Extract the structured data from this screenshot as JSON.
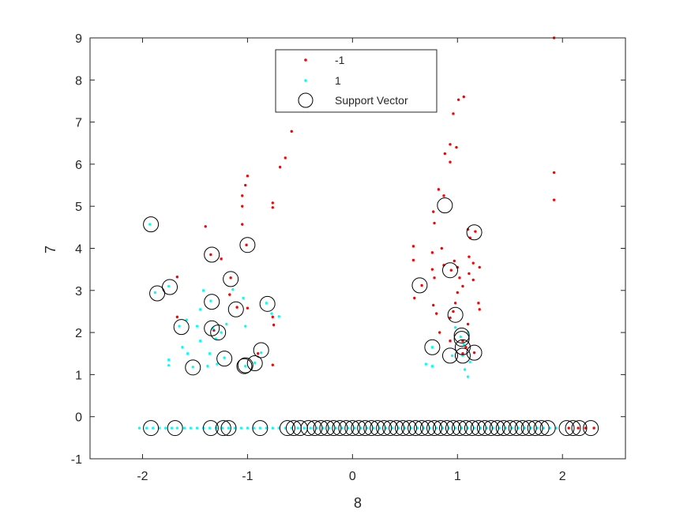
{
  "chart_data": {
    "type": "scatter",
    "title": "",
    "xlabel": "8",
    "ylabel": "7",
    "xlim": [
      -2.5,
      2.6
    ],
    "ylim": [
      -1,
      9
    ],
    "xticks": [
      -2,
      -1,
      0,
      1,
      2
    ],
    "xtick_labels": [
      "-2",
      "-1",
      "0",
      "1",
      "2"
    ],
    "yticks": [
      -1,
      0,
      1,
      2,
      3,
      4,
      5,
      6,
      7,
      8,
      9
    ],
    "ytick_labels": [
      "-1",
      "0",
      "1",
      "2",
      "3",
      "4",
      "5",
      "6",
      "7",
      "8",
      "9"
    ],
    "grid": false,
    "legend": {
      "placement": "top-center",
      "entries": [
        "-1",
        "1",
        "Support Vector"
      ]
    },
    "colors": {
      "neg": "#ff0000",
      "pos": "#00ffff",
      "sv": "#000000",
      "axis": "#262626"
    },
    "series": [
      {
        "name": "-1",
        "marker": "dot",
        "points": [
          [
            1.92,
            9.0
          ],
          [
            1.92,
            5.8
          ],
          [
            1.92,
            5.15
          ],
          [
            -0.58,
            6.78
          ],
          [
            -0.64,
            6.15
          ],
          [
            -0.69,
            5.93
          ],
          [
            -1.0,
            5.72
          ],
          [
            -1.02,
            5.5
          ],
          [
            -1.05,
            5.25
          ],
          [
            -1.05,
            5.0
          ],
          [
            -1.05,
            4.57
          ],
          [
            -1.01,
            4.08
          ],
          [
            -0.76,
            5.08
          ],
          [
            -0.76,
            4.97
          ],
          [
            -1.4,
            4.52
          ],
          [
            -1.35,
            3.85
          ],
          [
            -1.25,
            3.75
          ],
          [
            -1.67,
            3.32
          ],
          [
            -1.16,
            3.3
          ],
          [
            -1.17,
            2.9
          ],
          [
            -1.1,
            2.6
          ],
          [
            -1.0,
            2.58
          ],
          [
            -0.9,
            1.5
          ],
          [
            -0.76,
            2.37
          ],
          [
            -0.75,
            2.18
          ],
          [
            -0.76,
            1.23
          ],
          [
            -1.67,
            2.37
          ],
          [
            -1.32,
            2.05
          ],
          [
            1.06,
            7.6
          ],
          [
            1.01,
            7.53
          ],
          [
            0.96,
            7.2
          ],
          [
            0.93,
            6.47
          ],
          [
            0.99,
            6.4
          ],
          [
            0.88,
            6.25
          ],
          [
            0.93,
            6.05
          ],
          [
            0.82,
            5.4
          ],
          [
            0.87,
            5.25
          ],
          [
            0.77,
            4.87
          ],
          [
            0.78,
            4.6
          ],
          [
            0.58,
            4.05
          ],
          [
            0.58,
            3.72
          ],
          [
            0.76,
            3.9
          ],
          [
            0.76,
            3.5
          ],
          [
            0.78,
            3.3
          ],
          [
            0.66,
            3.12
          ],
          [
            0.59,
            2.82
          ],
          [
            0.77,
            2.65
          ],
          [
            0.8,
            2.45
          ],
          [
            0.83,
            2.0
          ],
          [
            0.85,
            4.0
          ],
          [
            0.87,
            3.6
          ],
          [
            0.94,
            3.48
          ],
          [
            0.97,
            3.7
          ],
          [
            1.0,
            3.55
          ],
          [
            1.02,
            3.3
          ],
          [
            1.05,
            3.1
          ],
          [
            1.0,
            2.95
          ],
          [
            0.98,
            2.7
          ],
          [
            0.96,
            2.5
          ],
          [
            0.93,
            2.35
          ],
          [
            1.1,
            4.45
          ],
          [
            1.12,
            4.25
          ],
          [
            1.17,
            4.4
          ],
          [
            1.11,
            3.8
          ],
          [
            1.15,
            3.65
          ],
          [
            1.21,
            3.55
          ],
          [
            1.11,
            3.4
          ],
          [
            1.15,
            3.25
          ],
          [
            1.2,
            2.7
          ],
          [
            1.21,
            2.55
          ],
          [
            1.1,
            2.2
          ],
          [
            1.16,
            1.52
          ],
          [
            1.05,
            1.8
          ],
          [
            1.08,
            1.65
          ],
          [
            1.05,
            1.5
          ],
          [
            0.93,
            1.8
          ],
          [
            2.06,
            -0.27
          ],
          [
            2.15,
            -0.27
          ],
          [
            2.22,
            -0.27
          ],
          [
            2.3,
            -0.27
          ]
        ]
      },
      {
        "name": "1",
        "marker": "dot",
        "points": [
          [
            -1.93,
            4.57
          ],
          [
            -1.88,
            2.95
          ],
          [
            -1.75,
            3.1
          ],
          [
            -1.65,
            2.15
          ],
          [
            -1.62,
            1.65
          ],
          [
            -1.58,
            2.3
          ],
          [
            -1.57,
            1.5
          ],
          [
            -1.75,
            1.35
          ],
          [
            -1.75,
            1.22
          ],
          [
            -1.52,
            1.18
          ],
          [
            -1.45,
            1.8
          ],
          [
            -1.45,
            2.55
          ],
          [
            -1.42,
            3.0
          ],
          [
            -1.35,
            2.75
          ],
          [
            -1.33,
            2.1
          ],
          [
            -1.3,
            1.85
          ],
          [
            -1.36,
            1.5
          ],
          [
            -1.38,
            1.2
          ],
          [
            -1.29,
            1.25
          ],
          [
            -1.22,
            1.4
          ],
          [
            -1.2,
            2.2
          ],
          [
            -1.14,
            3.02
          ],
          [
            -1.04,
            2.82
          ],
          [
            -1.02,
            2.15
          ],
          [
            -1.02,
            1.2
          ],
          [
            -0.93,
            1.28
          ],
          [
            -0.87,
            1.52
          ],
          [
            -0.82,
            2.7
          ],
          [
            -0.77,
            2.45
          ],
          [
            -0.7,
            2.38
          ],
          [
            -1.48,
            2.15
          ],
          [
            -1.25,
            2.0
          ],
          [
            0.7,
            1.25
          ],
          [
            0.76,
            1.2
          ],
          [
            0.76,
            1.65
          ],
          [
            0.95,
            1.45
          ],
          [
            0.98,
            2.12
          ],
          [
            1.03,
            1.9
          ],
          [
            1.06,
            1.72
          ],
          [
            1.1,
            2.0
          ],
          [
            1.12,
            1.3
          ],
          [
            1.1,
            0.95
          ],
          [
            1.05,
            1.45
          ],
          [
            1.07,
            1.12
          ],
          [
            -2.03,
            -0.27
          ],
          [
            -1.96,
            -0.27
          ],
          [
            -1.9,
            -0.27
          ],
          [
            -1.84,
            -0.27
          ],
          [
            -1.78,
            -0.27
          ],
          [
            -1.72,
            -0.27
          ],
          [
            -1.67,
            -0.27
          ],
          [
            -1.6,
            -0.27
          ],
          [
            -1.54,
            -0.27
          ],
          [
            -1.48,
            -0.27
          ],
          [
            -1.42,
            -0.27
          ],
          [
            -1.36,
            -0.27
          ],
          [
            -1.3,
            -0.27
          ],
          [
            -1.24,
            -0.27
          ],
          [
            -1.18,
            -0.27
          ],
          [
            -1.12,
            -0.27
          ],
          [
            -1.06,
            -0.27
          ],
          [
            -1.0,
            -0.27
          ],
          [
            -0.94,
            -0.27
          ],
          [
            -0.88,
            -0.27
          ],
          [
            -0.82,
            -0.27
          ],
          [
            -0.76,
            -0.27
          ],
          [
            -0.7,
            -0.27
          ],
          [
            -0.64,
            -0.27
          ],
          [
            -0.58,
            -0.27
          ],
          [
            -0.52,
            -0.27
          ],
          [
            -0.46,
            -0.27
          ],
          [
            -0.4,
            -0.27
          ],
          [
            -0.34,
            -0.27
          ],
          [
            -0.28,
            -0.27
          ],
          [
            -0.22,
            -0.27
          ],
          [
            -0.16,
            -0.27
          ],
          [
            -0.1,
            -0.27
          ],
          [
            -0.04,
            -0.27
          ],
          [
            0.02,
            -0.27
          ],
          [
            0.08,
            -0.27
          ],
          [
            0.14,
            -0.27
          ],
          [
            0.2,
            -0.27
          ],
          [
            0.26,
            -0.27
          ],
          [
            0.32,
            -0.27
          ],
          [
            0.38,
            -0.27
          ],
          [
            0.44,
            -0.27
          ],
          [
            0.5,
            -0.27
          ],
          [
            0.56,
            -0.27
          ],
          [
            0.62,
            -0.27
          ],
          [
            0.68,
            -0.27
          ],
          [
            0.74,
            -0.27
          ],
          [
            0.8,
            -0.27
          ],
          [
            0.86,
            -0.27
          ],
          [
            0.92,
            -0.27
          ],
          [
            0.98,
            -0.27
          ],
          [
            1.04,
            -0.27
          ],
          [
            1.1,
            -0.27
          ],
          [
            1.16,
            -0.27
          ],
          [
            1.22,
            -0.27
          ],
          [
            1.28,
            -0.27
          ],
          [
            1.34,
            -0.27
          ],
          [
            1.4,
            -0.27
          ],
          [
            1.46,
            -0.27
          ],
          [
            1.52,
            -0.27
          ],
          [
            1.58,
            -0.27
          ],
          [
            1.64,
            -0.27
          ],
          [
            1.7,
            -0.27
          ],
          [
            1.76,
            -0.27
          ],
          [
            1.82,
            -0.27
          ],
          [
            1.88,
            -0.27
          ],
          [
            1.94,
            -0.27
          ]
        ]
      },
      {
        "name": "Support Vector",
        "marker": "circle",
        "points": [
          [
            -1.92,
            4.57
          ],
          [
            -1.86,
            2.93
          ],
          [
            -1.74,
            3.08
          ],
          [
            -1.63,
            2.13
          ],
          [
            -1.52,
            1.17
          ],
          [
            -1.34,
            3.85
          ],
          [
            -1.34,
            2.73
          ],
          [
            -1.34,
            2.1
          ],
          [
            -1.28,
            2.0
          ],
          [
            -1.22,
            1.38
          ],
          [
            -1.16,
            3.27
          ],
          [
            -1.11,
            2.55
          ],
          [
            -1.03,
            1.2
          ],
          [
            -1.02,
            1.22
          ],
          [
            -1.0,
            4.08
          ],
          [
            -0.93,
            1.27
          ],
          [
            -0.87,
            1.58
          ],
          [
            -0.81,
            2.68
          ],
          [
            0.64,
            3.12
          ],
          [
            0.76,
            1.65
          ],
          [
            0.88,
            5.02
          ],
          [
            0.93,
            3.48
          ],
          [
            0.93,
            1.45
          ],
          [
            0.98,
            2.42
          ],
          [
            1.04,
            1.93
          ],
          [
            1.04,
            1.85
          ],
          [
            1.05,
            1.65
          ],
          [
            1.05,
            1.45
          ],
          [
            1.16,
            4.38
          ],
          [
            1.16,
            1.52
          ],
          [
            -1.92,
            -0.27
          ],
          [
            -1.69,
            -0.27
          ],
          [
            -1.35,
            -0.27
          ],
          [
            -1.23,
            -0.27
          ],
          [
            -1.18,
            -0.27
          ],
          [
            -0.88,
            -0.27
          ],
          [
            -0.62,
            -0.27
          ],
          [
            -0.56,
            -0.27
          ],
          [
            -0.5,
            -0.27
          ],
          [
            -0.42,
            -0.27
          ],
          [
            -0.36,
            -0.27
          ],
          [
            -0.3,
            -0.27
          ],
          [
            -0.24,
            -0.27
          ],
          [
            -0.18,
            -0.27
          ],
          [
            -0.12,
            -0.27
          ],
          [
            -0.06,
            -0.27
          ],
          [
            0.0,
            -0.27
          ],
          [
            0.06,
            -0.27
          ],
          [
            0.12,
            -0.27
          ],
          [
            0.18,
            -0.27
          ],
          [
            0.24,
            -0.27
          ],
          [
            0.3,
            -0.27
          ],
          [
            0.36,
            -0.27
          ],
          [
            0.42,
            -0.27
          ],
          [
            0.48,
            -0.27
          ],
          [
            0.54,
            -0.27
          ],
          [
            0.6,
            -0.27
          ],
          [
            0.66,
            -0.27
          ],
          [
            0.72,
            -0.27
          ],
          [
            0.78,
            -0.27
          ],
          [
            0.84,
            -0.27
          ],
          [
            0.9,
            -0.27
          ],
          [
            0.96,
            -0.27
          ],
          [
            1.02,
            -0.27
          ],
          [
            1.08,
            -0.27
          ],
          [
            1.14,
            -0.27
          ],
          [
            1.2,
            -0.27
          ],
          [
            1.26,
            -0.27
          ],
          [
            1.32,
            -0.27
          ],
          [
            1.38,
            -0.27
          ],
          [
            1.44,
            -0.27
          ],
          [
            1.5,
            -0.27
          ],
          [
            1.56,
            -0.27
          ],
          [
            1.62,
            -0.27
          ],
          [
            1.68,
            -0.27
          ],
          [
            1.74,
            -0.27
          ],
          [
            1.8,
            -0.27
          ],
          [
            1.86,
            -0.27
          ],
          [
            2.04,
            -0.27
          ],
          [
            2.1,
            -0.27
          ],
          [
            2.16,
            -0.27
          ],
          [
            2.27,
            -0.27
          ]
        ]
      }
    ]
  }
}
